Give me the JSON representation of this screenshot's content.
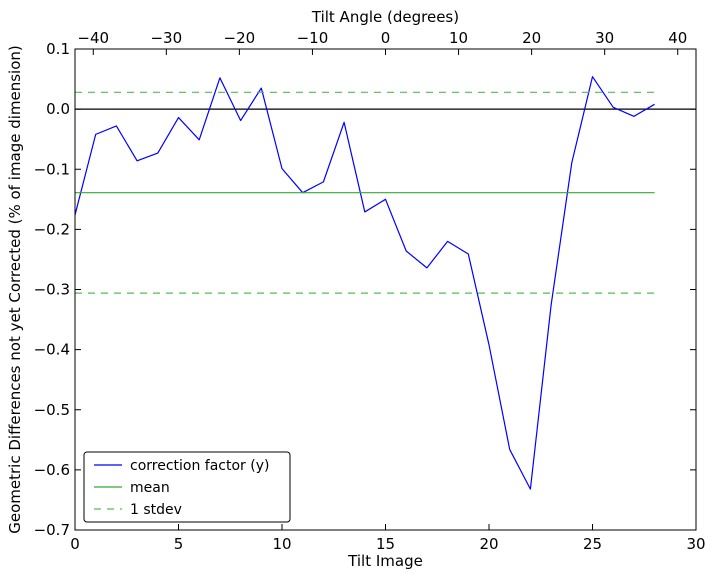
{
  "chart_data": {
    "type": "line",
    "xlabel": "Tilt Image",
    "ylabel": "Geometric Differences not yet Corrected (% of image dimension)",
    "top_xlabel": "Tilt Angle (degrees)",
    "xlim": [
      0,
      30
    ],
    "ylim": [
      -0.7,
      0.1
    ],
    "top_xlim": [
      -42.5,
      42.5
    ],
    "xticks": [
      0,
      5,
      10,
      15,
      20,
      25,
      30
    ],
    "xtick_labels": [
      "0",
      "5",
      "10",
      "15",
      "20",
      "25",
      "30"
    ],
    "yticks": [
      0.1,
      0.0,
      -0.1,
      -0.2,
      -0.3,
      -0.4,
      -0.5,
      -0.6,
      -0.7
    ],
    "ytick_labels": [
      "0.1",
      "0.0",
      "−0.1",
      "−0.2",
      "−0.3",
      "−0.4",
      "−0.5",
      "−0.6",
      "−0.7"
    ],
    "top_xticks": [
      -40,
      -30,
      -20,
      -10,
      0,
      10,
      20,
      30,
      40
    ],
    "top_xtick_labels": [
      "−40",
      "−30",
      "−20",
      "−10",
      "0",
      "10",
      "20",
      "30",
      "40"
    ],
    "grid": false,
    "legend_position": "lower-left",
    "zero_line": 0.0,
    "series": [
      {
        "name": "correction factor (y)",
        "color": "#0000ff",
        "style": "solid",
        "x": [
          0,
          1,
          2,
          3,
          4,
          5,
          6,
          7,
          8,
          9,
          10,
          11,
          12,
          13,
          14,
          15,
          16,
          17,
          18,
          19,
          20,
          21,
          22,
          23,
          24,
          25,
          26,
          27,
          28
        ],
        "y": [
          -0.176,
          -0.042,
          -0.028,
          -0.086,
          -0.073,
          -0.014,
          -0.051,
          0.052,
          -0.019,
          0.035,
          -0.099,
          -0.139,
          -0.121,
          -0.022,
          -0.171,
          -0.15,
          -0.236,
          -0.264,
          -0.22,
          -0.241,
          -0.392,
          -0.566,
          -0.632,
          -0.326,
          -0.089,
          0.054,
          0.003,
          -0.012,
          0.008
        ]
      },
      {
        "name": "mean",
        "color": "#33aa33",
        "style": "solid",
        "x": [
          0,
          28
        ],
        "y": [
          -0.139,
          -0.139
        ]
      },
      {
        "name": "1 stdev",
        "color": "#55bb55",
        "style": "dashed",
        "x": [
          0,
          28
        ],
        "y": [
          0.028,
          0.028
        ]
      },
      {
        "name": "",
        "color": "#55bb55",
        "style": "dashed",
        "x": [
          0,
          28
        ],
        "y": [
          -0.306,
          -0.306
        ]
      }
    ]
  }
}
